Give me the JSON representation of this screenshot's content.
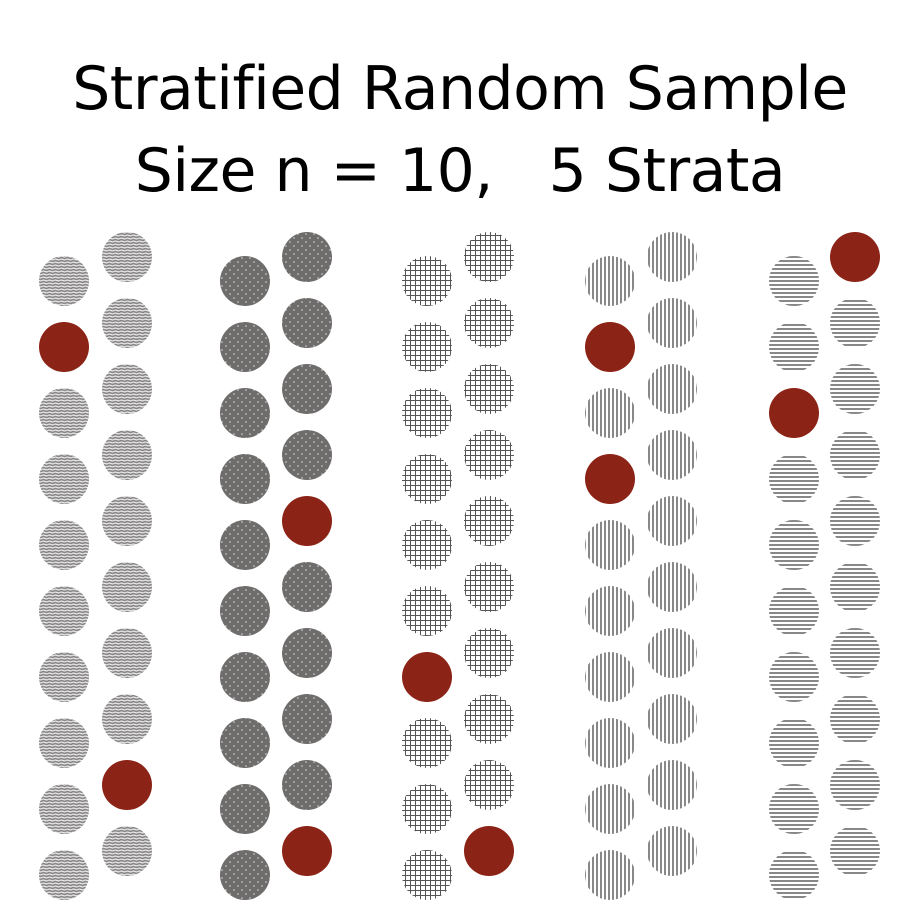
{
  "title": {
    "line1": "Stratified Random Sample",
    "line2": "Size n = 10,   5 Strata"
  },
  "colors": {
    "selected": "#8b2316",
    "dark_fill": "#6f6c6c",
    "pattern_ink": "#555555",
    "background": "#ffffff"
  },
  "strata": [
    {
      "name": "stratum-1",
      "pattern": "horizontal-wavy",
      "left_column_count": 10,
      "right_column_count": 10,
      "selected": [
        {
          "column": "left",
          "index": 1
        },
        {
          "column": "right",
          "index": 8
        }
      ]
    },
    {
      "name": "stratum-2",
      "pattern": "dotted-dark",
      "left_column_count": 10,
      "right_column_count": 10,
      "selected": [
        {
          "column": "right",
          "index": 4
        },
        {
          "column": "right",
          "index": 9
        }
      ]
    },
    {
      "name": "stratum-3",
      "pattern": "grid",
      "left_column_count": 10,
      "right_column_count": 10,
      "selected": [
        {
          "column": "left",
          "index": 6
        },
        {
          "column": "right",
          "index": 9
        }
      ]
    },
    {
      "name": "stratum-4",
      "pattern": "vertical-lines",
      "left_column_count": 10,
      "right_column_count": 10,
      "selected": [
        {
          "column": "left",
          "index": 1
        },
        {
          "column": "left",
          "index": 3
        }
      ]
    },
    {
      "name": "stratum-5",
      "pattern": "horizontal-lines",
      "left_column_count": 10,
      "right_column_count": 10,
      "selected": [
        {
          "column": "right",
          "index": 0
        },
        {
          "column": "left",
          "index": 2
        }
      ]
    }
  ]
}
